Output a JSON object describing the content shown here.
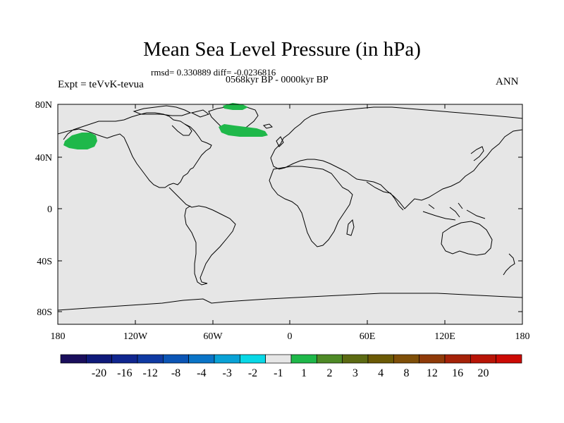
{
  "title": "Mean Sea Level Pressure (in hPa)",
  "stats": "rmsd= 0.330889 diff= -0.0236816",
  "period": "0568kyr BP - 0000kyr BP",
  "experiment": "Expt = teVvK-tevua",
  "season": "ANN",
  "colors": {
    "ocean": "#e6e6e6",
    "coast": "#000000",
    "anomaly_green": "#1fb84a"
  },
  "axes": {
    "lat_ticks": [
      "80N",
      "40N",
      "0",
      "40S",
      "80S"
    ],
    "lon_ticks": [
      "180",
      "120W",
      "60W",
      "0",
      "60E",
      "120E",
      "180"
    ]
  },
  "colorbar": {
    "colors": [
      "#1a0e5c",
      "#0f1a7a",
      "#10268f",
      "#0f3aa3",
      "#0b55b5",
      "#0a74c7",
      "#09a2d6",
      "#08d8e6",
      "#e6e6e6",
      "#1fb84a",
      "#4e8a26",
      "#5c6a12",
      "#6b5a05",
      "#7f4f08",
      "#8f3a08",
      "#a52208",
      "#b81406",
      "#cc0a04"
    ],
    "labels": [
      "-20",
      "-16",
      "-12",
      "-8",
      "-4",
      "-3",
      "-2",
      "-1",
      "1",
      "2",
      "3",
      "4",
      "8",
      "12",
      "16",
      "20"
    ]
  }
}
